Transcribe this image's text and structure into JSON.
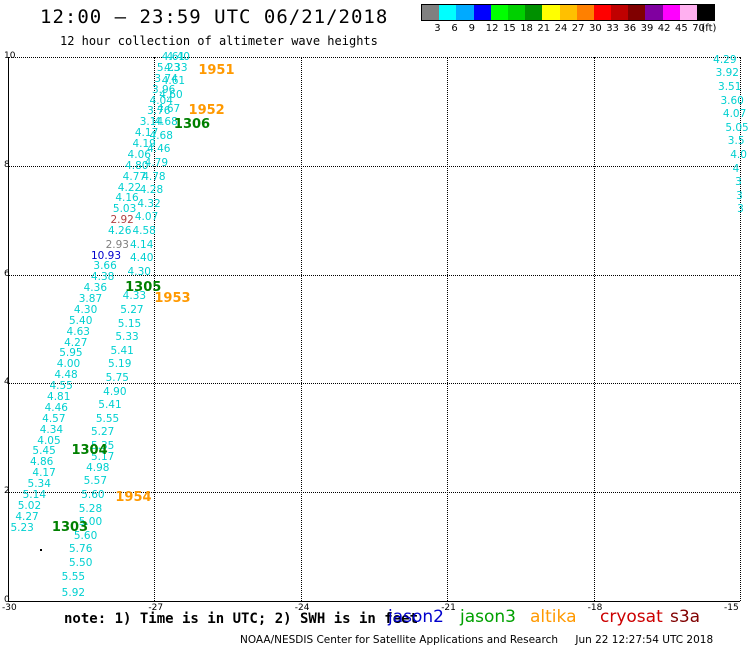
{
  "header": {
    "title": "12:00 – 23:59 UTC 06/21/2018",
    "subtitle": "12 hour collection of altimeter wave heights"
  },
  "colorbar": {
    "colors": [
      "#808080",
      "#00ffff",
      "#00aaff",
      "#0000ff",
      "#00ff00",
      "#00d000",
      "#009000",
      "#ffff00",
      "#ffc000",
      "#ff8000",
      "#ff0000",
      "#c00000",
      "#800000",
      "#8000a0",
      "#ff00ff",
      "#ffb0f0",
      "#000000"
    ],
    "labels": [
      "3",
      "6",
      "9",
      "12",
      "15",
      "18",
      "21",
      "24",
      "27",
      "30",
      "33",
      "36",
      "39",
      "42",
      "45",
      "70",
      "(ft)"
    ]
  },
  "axes": {
    "x_ticks": [
      "-30",
      "-27",
      "-24",
      "-21",
      "-18",
      "-15"
    ],
    "y_ticks": [
      "0",
      "2",
      "4",
      "6",
      "8",
      "10"
    ],
    "xlim": [
      -30,
      -15
    ],
    "ylim": [
      0,
      10
    ]
  },
  "tracks": [
    {
      "satellite": "jason3",
      "pass_label": "1303",
      "pass_lon": -29.1,
      "pass_lat": 1.35,
      "label_color": "#008000"
    },
    {
      "satellite": "jason3",
      "pass_label": "1304",
      "pass_lon": -28.7,
      "pass_lat": 2.75,
      "label_color": "#008000"
    },
    {
      "satellite": "jason3",
      "pass_label": "1305",
      "pass_lon": -27.6,
      "pass_lat": 5.75,
      "label_color": "#008000"
    },
    {
      "satellite": "jason3",
      "pass_label": "1306",
      "pass_lon": -26.6,
      "pass_lat": 8.75,
      "label_color": "#008000"
    },
    {
      "satellite": "altika",
      "pass_label": "1951",
      "pass_lon": -26.1,
      "pass_lat": 9.75,
      "label_color": "#ff9900"
    },
    {
      "satellite": "altika",
      "pass_label": "1952",
      "pass_lon": -26.3,
      "pass_lat": 9.0,
      "label_color": "#ff9900"
    },
    {
      "satellite": "altika",
      "pass_label": "1953",
      "pass_lon": -27.0,
      "pass_lat": 5.55,
      "label_color": "#ff9900"
    },
    {
      "satellite": "altika",
      "pass_label": "1954",
      "pass_lon": -27.8,
      "pass_lat": 1.9,
      "label_color": "#ff9900"
    }
  ],
  "observations": [
    {
      "v": "5.23",
      "lon": -29.95,
      "lat": 1.35,
      "c": "#00d0d0"
    },
    {
      "v": "4.27",
      "lon": -29.85,
      "lat": 1.55,
      "c": "#00d0d0"
    },
    {
      "v": "5.02",
      "lon": -29.8,
      "lat": 1.75,
      "c": "#00d0d0"
    },
    {
      "v": "5.14",
      "lon": -29.7,
      "lat": 1.95,
      "c": "#00d0d0"
    },
    {
      "v": "5.34",
      "lon": -29.6,
      "lat": 2.15,
      "c": "#00d0d0"
    },
    {
      "v": "4.86",
      "lon": -29.55,
      "lat": 2.55,
      "c": "#00d0d0"
    },
    {
      "v": "5.45",
      "lon": -29.5,
      "lat": 2.75,
      "c": "#00d0d0"
    },
    {
      "v": "4.05",
      "lon": -29.4,
      "lat": 2.95,
      "c": "#00d0d0"
    },
    {
      "v": "4.17",
      "lon": -29.5,
      "lat": 2.35,
      "c": "#00d0d0"
    },
    {
      "v": "4.34",
      "lon": -29.35,
      "lat": 3.15,
      "c": "#00d0d0"
    },
    {
      "v": "4.57",
      "lon": -29.3,
      "lat": 3.35,
      "c": "#00d0d0"
    },
    {
      "v": "4.46",
      "lon": -29.25,
      "lat": 3.55,
      "c": "#00d0d0"
    },
    {
      "v": "4.81",
      "lon": -29.2,
      "lat": 3.75,
      "c": "#00d0d0"
    },
    {
      "v": "4.55",
      "lon": -29.15,
      "lat": 3.95,
      "c": "#00d0d0"
    },
    {
      "v": "4.48",
      "lon": -29.05,
      "lat": 4.15,
      "c": "#00d0d0"
    },
    {
      "v": "4.00",
      "lon": -29.0,
      "lat": 4.35,
      "c": "#00d0d0"
    },
    {
      "v": "5.95",
      "lon": -28.95,
      "lat": 4.55,
      "c": "#00d0d0"
    },
    {
      "v": "4.27",
      "lon": -28.85,
      "lat": 4.75,
      "c": "#00d0d0"
    },
    {
      "v": "4.63",
      "lon": -28.8,
      "lat": 4.95,
      "c": "#00d0d0"
    },
    {
      "v": "5.40",
      "lon": -28.75,
      "lat": 5.15,
      "c": "#00d0d0"
    },
    {
      "v": "4.30",
      "lon": -28.65,
      "lat": 5.35,
      "c": "#00d0d0"
    },
    {
      "v": "3.87",
      "lon": -28.55,
      "lat": 5.55,
      "c": "#00d0d0"
    },
    {
      "v": "4.36",
      "lon": -28.45,
      "lat": 5.75,
      "c": "#00d0d0"
    },
    {
      "v": "4.38",
      "lon": -28.3,
      "lat": 5.95,
      "c": "#00d0d0"
    },
    {
      "v": "3.66",
      "lon": -28.25,
      "lat": 6.15,
      "c": "#00d0d0"
    },
    {
      "v": "10.93",
      "lon": -28.3,
      "lat": 6.35,
      "c": "#0000cc"
    },
    {
      "v": "2.93",
      "lon": -28.0,
      "lat": 6.55,
      "c": "#808080"
    },
    {
      "v": "4.26",
      "lon": -27.95,
      "lat": 6.8,
      "c": "#00d0d0"
    },
    {
      "v": "2.92",
      "lon": -27.9,
      "lat": 7.0,
      "c": "#b04040"
    },
    {
      "v": "5.03",
      "lon": -27.85,
      "lat": 7.2,
      "c": "#00d0d0"
    },
    {
      "v": "4.16",
      "lon": -27.8,
      "lat": 7.4,
      "c": "#00d0d0"
    },
    {
      "v": "4.22",
      "lon": -27.75,
      "lat": 7.6,
      "c": "#00d0d0"
    },
    {
      "v": "4.77",
      "lon": -27.65,
      "lat": 7.8,
      "c": "#00d0d0"
    },
    {
      "v": "4.80",
      "lon": -27.6,
      "lat": 8.0,
      "c": "#00d0d0"
    },
    {
      "v": "4.06",
      "lon": -27.55,
      "lat": 8.2,
      "c": "#00d0d0"
    },
    {
      "v": "4.19",
      "lon": -27.45,
      "lat": 8.4,
      "c": "#00d0d0"
    },
    {
      "v": "4.17",
      "lon": -27.4,
      "lat": 8.6,
      "c": "#00d0d0"
    },
    {
      "v": "3.14",
      "lon": -27.3,
      "lat": 8.8,
      "c": "#00d0d0"
    },
    {
      "v": "3.76",
      "lon": -27.15,
      "lat": 9.0,
      "c": "#00d0d0"
    },
    {
      "v": "4.04",
      "lon": -27.1,
      "lat": 9.2,
      "c": "#00d0d0"
    },
    {
      "v": "3.96",
      "lon": -27.05,
      "lat": 9.4,
      "c": "#00d0d0"
    },
    {
      "v": "3.74",
      "lon": -27.0,
      "lat": 9.6,
      "c": "#00d0d0"
    },
    {
      "v": "5.23",
      "lon": -26.95,
      "lat": 9.8,
      "c": "#00d0d0"
    },
    {
      "v": "4.61",
      "lon": -26.85,
      "lat": 10.0,
      "c": "#00d0d0"
    },
    {
      "v": "5.92",
      "lon": -28.9,
      "lat": 0.15,
      "c": "#00d0d0"
    },
    {
      "v": "5.55",
      "lon": -28.9,
      "lat": 0.45,
      "c": "#00d0d0"
    },
    {
      "v": "5.50",
      "lon": -28.75,
      "lat": 0.7,
      "c": "#00d0d0"
    },
    {
      "v": "5.76",
      "lon": -28.75,
      "lat": 0.95,
      "c": "#00d0d0"
    },
    {
      "v": "5.60",
      "lon": -28.65,
      "lat": 1.2,
      "c": "#00d0d0"
    },
    {
      "v": "5.00",
      "lon": -28.55,
      "lat": 1.45,
      "c": "#00d0d0"
    },
    {
      "v": "5.28",
      "lon": -28.55,
      "lat": 1.7,
      "c": "#00d0d0"
    },
    {
      "v": "5.60",
      "lon": -28.5,
      "lat": 1.95,
      "c": "#00d0d0"
    },
    {
      "v": "5.57",
      "lon": -28.45,
      "lat": 2.2,
      "c": "#00d0d0"
    },
    {
      "v": "4.98",
      "lon": -28.4,
      "lat": 2.45,
      "c": "#00d0d0"
    },
    {
      "v": "5.17",
      "lon": -28.3,
      "lat": 2.65,
      "c": "#00d0d0"
    },
    {
      "v": "5.35",
      "lon": -28.3,
      "lat": 2.85,
      "c": "#00d0d0"
    },
    {
      "v": "5.27",
      "lon": -28.3,
      "lat": 3.1,
      "c": "#00d0d0"
    },
    {
      "v": "5.55",
      "lon": -28.2,
      "lat": 3.35,
      "c": "#00d0d0"
    },
    {
      "v": "5.41",
      "lon": -28.15,
      "lat": 3.6,
      "c": "#00d0d0"
    },
    {
      "v": "4.90",
      "lon": -28.05,
      "lat": 3.85,
      "c": "#00d0d0"
    },
    {
      "v": "5.75",
      "lon": -28.0,
      "lat": 4.1,
      "c": "#00d0d0"
    },
    {
      "v": "5.19",
      "lon": -27.95,
      "lat": 4.35,
      "c": "#00d0d0"
    },
    {
      "v": "5.41",
      "lon": -27.9,
      "lat": 4.6,
      "c": "#00d0d0"
    },
    {
      "v": "5.33",
      "lon": -27.8,
      "lat": 4.85,
      "c": "#00d0d0"
    },
    {
      "v": "5.15",
      "lon": -27.75,
      "lat": 5.1,
      "c": "#00d0d0"
    },
    {
      "v": "5.27",
      "lon": -27.7,
      "lat": 5.35,
      "c": "#00d0d0"
    },
    {
      "v": "4.33",
      "lon": -27.65,
      "lat": 5.6,
      "c": "#00d0d0"
    },
    {
      "v": "4.30",
      "lon": -27.55,
      "lat": 6.05,
      "c": "#00d0d0"
    },
    {
      "v": "4.40",
      "lon": -27.5,
      "lat": 6.3,
      "c": "#00d0d0"
    },
    {
      "v": "4.14",
      "lon": -27.5,
      "lat": 6.55,
      "c": "#00d0d0"
    },
    {
      "v": "4.58",
      "lon": -27.45,
      "lat": 6.8,
      "c": "#00d0d0"
    },
    {
      "v": "4.07",
      "lon": -27.4,
      "lat": 7.05,
      "c": "#00d0d0"
    },
    {
      "v": "4.32",
      "lon": -27.35,
      "lat": 7.3,
      "c": "#00d0d0"
    },
    {
      "v": "4.28",
      "lon": -27.3,
      "lat": 7.55,
      "c": "#00d0d0"
    },
    {
      "v": "4.78",
      "lon": -27.25,
      "lat": 7.8,
      "c": "#00d0d0"
    },
    {
      "v": "4.79",
      "lon": -27.2,
      "lat": 8.05,
      "c": "#00d0d0"
    },
    {
      "v": "4.46",
      "lon": -27.15,
      "lat": 8.3,
      "c": "#00d0d0"
    },
    {
      "v": "4.68",
      "lon": -27.1,
      "lat": 8.55,
      "c": "#00d0d0"
    },
    {
      "v": "4.68",
      "lon": -27.0,
      "lat": 8.8,
      "c": "#00d0d0"
    },
    {
      "v": "4.67",
      "lon": -26.95,
      "lat": 9.05,
      "c": "#00d0d0"
    },
    {
      "v": "4.60",
      "lon": -26.9,
      "lat": 9.3,
      "c": "#00d0d0"
    },
    {
      "v": "4.61",
      "lon": -26.85,
      "lat": 9.55,
      "c": "#00d0d0"
    },
    {
      "v": "4.33",
      "lon": -26.8,
      "lat": 9.8,
      "c": "#00d0d0"
    },
    {
      "v": "4.40",
      "lon": -26.75,
      "lat": 10.0,
      "c": "#00d0d0"
    },
    {
      "v": "4.29",
      "lon": -15.55,
      "lat": 9.95,
      "c": "#00d0d0"
    },
    {
      "v": "3.92",
      "lon": -15.5,
      "lat": 9.7,
      "c": "#00d0d0"
    },
    {
      "v": "3.51",
      "lon": -15.45,
      "lat": 9.45,
      "c": "#00d0d0"
    },
    {
      "v": "3.60",
      "lon": -15.4,
      "lat": 9.2,
      "c": "#00d0d0"
    },
    {
      "v": "4.07",
      "lon": -15.35,
      "lat": 8.95,
      "c": "#00d0d0"
    },
    {
      "v": "5.05",
      "lon": -15.3,
      "lat": 8.7,
      "c": "#00d0d0"
    },
    {
      "v": "3.5",
      "lon": -15.25,
      "lat": 8.45,
      "c": "#00d0d0"
    },
    {
      "v": "4.0",
      "lon": -15.2,
      "lat": 8.2,
      "c": "#00d0d0"
    },
    {
      "v": "4",
      "lon": -15.15,
      "lat": 7.95,
      "c": "#00d0d0"
    },
    {
      "v": "3",
      "lon": -15.1,
      "lat": 7.7,
      "c": "#00d0d0"
    },
    {
      "v": "3",
      "lon": -15.08,
      "lat": 7.45,
      "c": "#00d0d0"
    },
    {
      "v": "3",
      "lon": -15.06,
      "lat": 7.2,
      "c": "#00d0d0"
    }
  ],
  "note": "note: 1) Time is in UTC; 2) SWH is in feet",
  "legend": [
    {
      "label": "jason2",
      "color": "#0000cc"
    },
    {
      "label": "jason3",
      "color": "#00a000"
    },
    {
      "label": "altika",
      "color": "#ff9900"
    },
    {
      "label": "cryosat",
      "color": "#cc0000"
    },
    {
      "label": "s3a",
      "color": "#800000"
    }
  ],
  "credit": "NOAA/NESDIS Center for Satellite Applications and Research",
  "timestamp": "Jun 22 12:27:54 UTC 2018"
}
